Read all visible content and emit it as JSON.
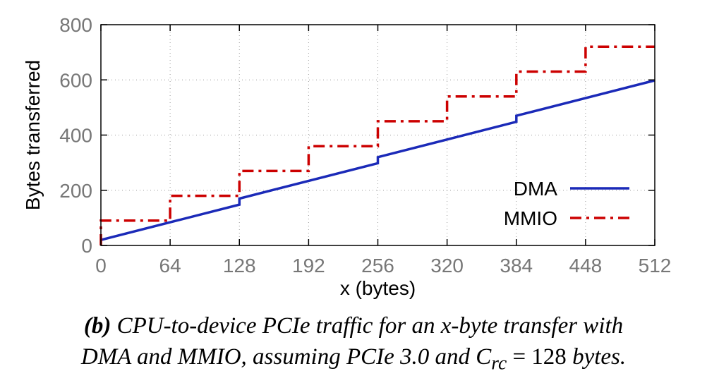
{
  "chart_data": {
    "type": "line",
    "xlabel": "x (bytes)",
    "ylabel": "Bytes transferred",
    "xlim": [
      0,
      512
    ],
    "ylim": [
      0,
      800
    ],
    "xticks": [
      0,
      64,
      128,
      192,
      256,
      320,
      384,
      448,
      512
    ],
    "yticks": [
      0,
      200,
      400,
      600,
      800
    ],
    "grid": true,
    "legend_position": "bottom-right",
    "colors": {
      "DMA": "#1b2ab8",
      "MMIO": "#cc0000"
    },
    "series": [
      {
        "name": "DMA",
        "style": "solid",
        "x": [
          0,
          128,
          128,
          256,
          256,
          384,
          384,
          512
        ],
        "y": [
          20,
          148,
          170,
          298,
          320,
          448,
          470,
          598
        ]
      },
      {
        "name": "MMIO",
        "style": "dash-dot",
        "x": [
          0,
          0,
          64,
          64,
          128,
          128,
          192,
          192,
          256,
          256,
          320,
          320,
          384,
          384,
          448,
          448,
          512
        ],
        "y": [
          0,
          90,
          90,
          180,
          180,
          270,
          270,
          360,
          360,
          450,
          450,
          540,
          540,
          630,
          630,
          720,
          720
        ]
      }
    ]
  },
  "caption": {
    "tag": "(b)",
    "line1": "CPU-to-device PCIe traffic for an x-byte transfer with",
    "line2_a": "DMA and MMIO, assuming PCIe 3.0 and C",
    "line2_sub": "rc",
    "line2_b": " = 128 ",
    "line2_c": "bytes."
  }
}
